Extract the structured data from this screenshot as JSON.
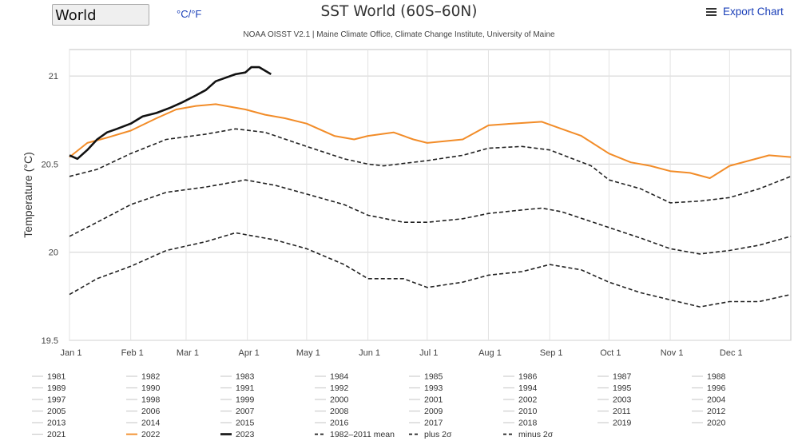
{
  "controls": {
    "region": "World",
    "units": "°C/°F",
    "export_label": "Export Chart"
  },
  "chart_data": {
    "type": "line",
    "title": "SST World (60S–60N)",
    "subtitle": "NOAA OISST V2.1 | Maine Climate Office, Climate Change Institute, University of Maine",
    "ylabel": "Temperature (°C)",
    "xlabel": "",
    "ylim": [
      19.5,
      21.15
    ],
    "yticks": [
      19.5,
      20,
      20.5,
      21
    ],
    "xlim": [
      1,
      366
    ],
    "months": [
      {
        "label": "Jan 1",
        "day": 1
      },
      {
        "label": "Feb 1",
        "day": 32
      },
      {
        "label": "Mar 1",
        "day": 60
      },
      {
        "label": "Apr 1",
        "day": 91
      },
      {
        "label": "May 1",
        "day": 121
      },
      {
        "label": "Jun 1",
        "day": 152
      },
      {
        "label": "Jul 1",
        "day": 182
      },
      {
        "label": "Aug 1",
        "day": 213
      },
      {
        "label": "Sep 1",
        "day": 244
      },
      {
        "label": "Oct 1",
        "day": 274
      },
      {
        "label": "Nov 1",
        "day": 305
      },
      {
        "label": "Dec 1",
        "day": 335
      }
    ],
    "series": [
      {
        "name": "1982–2011 mean",
        "style": "dashed",
        "color": "#222222",
        "points": [
          [
            1,
            20.09
          ],
          [
            15,
            20.17
          ],
          [
            32,
            20.27
          ],
          [
            50,
            20.34
          ],
          [
            70,
            20.37
          ],
          [
            80,
            20.39
          ],
          [
            90,
            20.41
          ],
          [
            105,
            20.38
          ],
          [
            121,
            20.33
          ],
          [
            140,
            20.27
          ],
          [
            152,
            20.21
          ],
          [
            170,
            20.17
          ],
          [
            182,
            20.17
          ],
          [
            200,
            20.19
          ],
          [
            213,
            20.22
          ],
          [
            230,
            20.24
          ],
          [
            240,
            20.25
          ],
          [
            250,
            20.23
          ],
          [
            274,
            20.14
          ],
          [
            290,
            20.08
          ],
          [
            305,
            20.02
          ],
          [
            320,
            19.99
          ],
          [
            335,
            20.01
          ],
          [
            350,
            20.04
          ],
          [
            366,
            20.09
          ]
        ]
      },
      {
        "name": "plus 2σ",
        "style": "dashed",
        "color": "#222222",
        "points": [
          [
            1,
            20.43
          ],
          [
            15,
            20.47
          ],
          [
            32,
            20.56
          ],
          [
            50,
            20.64
          ],
          [
            70,
            20.67
          ],
          [
            85,
            20.7
          ],
          [
            100,
            20.68
          ],
          [
            121,
            20.6
          ],
          [
            140,
            20.53
          ],
          [
            152,
            20.5
          ],
          [
            160,
            20.49
          ],
          [
            182,
            20.52
          ],
          [
            200,
            20.55
          ],
          [
            213,
            20.59
          ],
          [
            230,
            20.6
          ],
          [
            244,
            20.58
          ],
          [
            265,
            20.49
          ],
          [
            274,
            20.41
          ],
          [
            290,
            20.36
          ],
          [
            305,
            20.28
          ],
          [
            320,
            20.29
          ],
          [
            335,
            20.31
          ],
          [
            350,
            20.36
          ],
          [
            366,
            20.43
          ]
        ]
      },
      {
        "name": "minus 2σ",
        "style": "dashed",
        "color": "#222222",
        "points": [
          [
            1,
            19.76
          ],
          [
            15,
            19.85
          ],
          [
            32,
            19.92
          ],
          [
            50,
            20.01
          ],
          [
            70,
            20.06
          ],
          [
            85,
            20.11
          ],
          [
            105,
            20.07
          ],
          [
            121,
            20.02
          ],
          [
            140,
            19.93
          ],
          [
            152,
            19.85
          ],
          [
            170,
            19.85
          ],
          [
            182,
            19.8
          ],
          [
            200,
            19.83
          ],
          [
            213,
            19.87
          ],
          [
            230,
            19.89
          ],
          [
            244,
            19.93
          ],
          [
            260,
            19.9
          ],
          [
            274,
            19.83
          ],
          [
            290,
            19.77
          ],
          [
            305,
            19.73
          ],
          [
            320,
            19.69
          ],
          [
            335,
            19.72
          ],
          [
            350,
            19.72
          ],
          [
            366,
            19.76
          ]
        ]
      },
      {
        "name": "2022",
        "style": "solid",
        "color": "#f28c28",
        "points": [
          [
            1,
            20.54
          ],
          [
            10,
            20.62
          ],
          [
            20,
            20.65
          ],
          [
            32,
            20.69
          ],
          [
            45,
            20.76
          ],
          [
            55,
            20.81
          ],
          [
            65,
            20.83
          ],
          [
            75,
            20.84
          ],
          [
            90,
            20.81
          ],
          [
            100,
            20.78
          ],
          [
            110,
            20.76
          ],
          [
            121,
            20.73
          ],
          [
            135,
            20.66
          ],
          [
            145,
            20.64
          ],
          [
            152,
            20.66
          ],
          [
            165,
            20.68
          ],
          [
            175,
            20.64
          ],
          [
            182,
            20.62
          ],
          [
            200,
            20.64
          ],
          [
            213,
            20.72
          ],
          [
            225,
            20.73
          ],
          [
            240,
            20.74
          ],
          [
            250,
            20.7
          ],
          [
            260,
            20.66
          ],
          [
            274,
            20.56
          ],
          [
            285,
            20.51
          ],
          [
            295,
            20.49
          ],
          [
            305,
            20.46
          ],
          [
            315,
            20.45
          ],
          [
            325,
            20.42
          ],
          [
            335,
            20.49
          ],
          [
            345,
            20.52
          ],
          [
            355,
            20.55
          ],
          [
            366,
            20.54
          ]
        ]
      },
      {
        "name": "2023",
        "style": "solid",
        "color": "#111111",
        "points": [
          [
            1,
            20.55
          ],
          [
            5,
            20.53
          ],
          [
            10,
            20.58
          ],
          [
            15,
            20.64
          ],
          [
            20,
            20.68
          ],
          [
            25,
            20.7
          ],
          [
            32,
            20.73
          ],
          [
            38,
            20.77
          ],
          [
            45,
            20.79
          ],
          [
            52,
            20.82
          ],
          [
            58,
            20.85
          ],
          [
            65,
            20.89
          ],
          [
            70,
            20.92
          ],
          [
            75,
            20.97
          ],
          [
            80,
            20.99
          ],
          [
            85,
            21.01
          ],
          [
            90,
            21.02
          ],
          [
            93,
            21.05
          ],
          [
            97,
            21.05
          ],
          [
            100,
            21.03
          ],
          [
            103,
            21.01
          ]
        ]
      }
    ],
    "legend_years": [
      "1981",
      "1982",
      "1983",
      "1984",
      "1985",
      "1986",
      "1987",
      "1988",
      "1989",
      "1990",
      "1991",
      "1992",
      "1993",
      "1994",
      "1995",
      "1996",
      "1997",
      "1998",
      "1999",
      "2000",
      "2001",
      "2002",
      "2003",
      "2004",
      "2005",
      "2006",
      "2007",
      "2008",
      "2009",
      "2010",
      "2011",
      "2012",
      "2013",
      "2014",
      "2015",
      "2016",
      "2017",
      "2018",
      "2019",
      "2020",
      "2021",
      "2022",
      "2023"
    ],
    "legend_extra": [
      "1982–2011 mean",
      "plus 2σ",
      "minus 2σ"
    ]
  }
}
